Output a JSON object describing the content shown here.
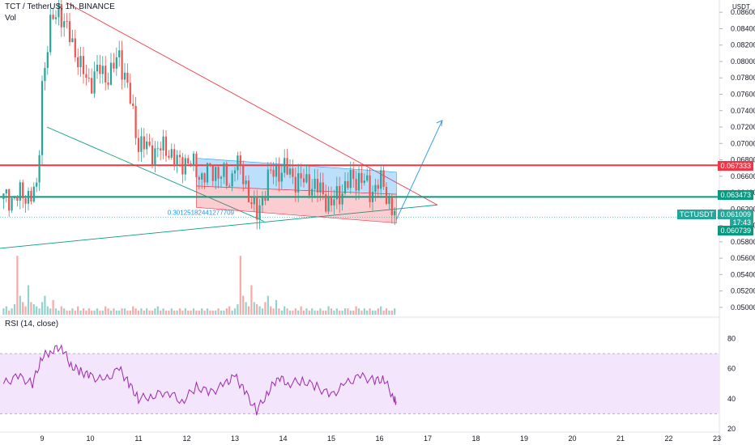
{
  "header": {
    "symbol_line": "TCT / TetherUS, 1h, BINANCE",
    "volume_label": "Vol",
    "rsi_label": "RSI (14, close)",
    "currency": "USDT"
  },
  "price_axis": {
    "ticks": [
      "0.086000",
      "0.084000",
      "0.082000",
      "0.080000",
      "0.078000",
      "0.076000",
      "0.074000",
      "0.072000",
      "0.070000",
      "0.068000",
      "0.066000",
      "0.064000",
      "0.062000",
      "0.060000",
      "0.058000",
      "0.056000",
      "0.054000",
      "0.052000",
      "0.050000"
    ]
  },
  "price_tags": {
    "resistance": {
      "label": "0.067333",
      "value": 0.067333,
      "color": "#f23645"
    },
    "support": {
      "label": "0.063473",
      "value": 0.063473,
      "color": "#089981"
    },
    "symbol": {
      "label": "TCTUSDT",
      "color": "#26a69a"
    },
    "last": {
      "label": "0.061009",
      "value": 0.061009,
      "color": "#26a69a"
    },
    "countdown": {
      "label": "17:43"
    },
    "low": {
      "label": "0.060739",
      "value": 0.060739,
      "color": "#089981"
    }
  },
  "annotation": {
    "label": "0.30125182441277709"
  },
  "rsi_axis": {
    "ticks": [
      "80",
      "60",
      "40",
      "20"
    ]
  },
  "time_axis": {
    "ticks": [
      "9",
      "10",
      "11",
      "12",
      "13",
      "14",
      "15",
      "16",
      "17",
      "18",
      "19",
      "20",
      "21",
      "22",
      "23"
    ]
  },
  "colors": {
    "up": "#26a69a",
    "down": "#ef5350",
    "rsi": "#9c27b0",
    "rsi_band": "#f3e5fb"
  },
  "chart_data": {
    "type": "candlestick",
    "ylim": [
      0.049,
      0.0875
    ],
    "rsi_ylim": [
      20,
      90
    ],
    "rsi_overbought": 70,
    "rsi_oversold": 30,
    "price_path": [
      [
        8.2,
        0.0632
      ],
      [
        8.5,
        0.0635
      ],
      [
        8.9,
        0.064
      ],
      [
        9.0,
        0.0775
      ],
      [
        9.2,
        0.085
      ],
      [
        9.35,
        0.0868
      ],
      [
        9.45,
        0.0842
      ],
      [
        9.6,
        0.083
      ],
      [
        9.8,
        0.079
      ],
      [
        10.0,
        0.0775
      ],
      [
        10.2,
        0.079
      ],
      [
        10.4,
        0.078
      ],
      [
        10.6,
        0.081
      ],
      [
        10.8,
        0.076
      ],
      [
        11.0,
        0.07
      ],
      [
        11.3,
        0.069
      ],
      [
        11.6,
        0.0695
      ],
      [
        11.8,
        0.0675
      ],
      [
        12.0,
        0.068
      ],
      [
        12.3,
        0.066
      ],
      [
        12.6,
        0.0668
      ],
      [
        12.9,
        0.065
      ],
      [
        13.0,
        0.068
      ],
      [
        13.2,
        0.0655
      ],
      [
        13.45,
        0.061
      ],
      [
        13.7,
        0.066
      ],
      [
        14.0,
        0.067
      ],
      [
        14.3,
        0.0655
      ],
      [
        14.6,
        0.065
      ],
      [
        14.8,
        0.064
      ],
      [
        15.0,
        0.0625
      ],
      [
        15.3,
        0.065
      ],
      [
        15.6,
        0.066
      ],
      [
        15.8,
        0.064
      ],
      [
        16.0,
        0.0655
      ],
      [
        16.2,
        0.063
      ],
      [
        16.35,
        0.061
      ]
    ],
    "rsi_path": [
      [
        8.2,
        50
      ],
      [
        8.5,
        55
      ],
      [
        8.8,
        50
      ],
      [
        9.0,
        68
      ],
      [
        9.2,
        72
      ],
      [
        9.4,
        75
      ],
      [
        9.6,
        62
      ],
      [
        9.8,
        58
      ],
      [
        10.0,
        55
      ],
      [
        10.3,
        52
      ],
      [
        10.6,
        60
      ],
      [
        10.8,
        50
      ],
      [
        11.0,
        40
      ],
      [
        11.3,
        42
      ],
      [
        11.6,
        45
      ],
      [
        11.9,
        38
      ],
      [
        12.2,
        48
      ],
      [
        12.5,
        44
      ],
      [
        12.8,
        50
      ],
      [
        13.0,
        55
      ],
      [
        13.2,
        45
      ],
      [
        13.45,
        32
      ],
      [
        13.7,
        45
      ],
      [
        13.9,
        55
      ],
      [
        14.1,
        50
      ],
      [
        14.4,
        52
      ],
      [
        14.7,
        48
      ],
      [
        15.0,
        42
      ],
      [
        15.3,
        50
      ],
      [
        15.6,
        55
      ],
      [
        15.9,
        52
      ],
      [
        16.1,
        53
      ],
      [
        16.3,
        40
      ],
      [
        16.35,
        38
      ]
    ],
    "volume": [
      3,
      4,
      2,
      3,
      5,
      28,
      9,
      6,
      4,
      14,
      6,
      5,
      4,
      3,
      6,
      9,
      4,
      3,
      7,
      3,
      2,
      4,
      3,
      2,
      2,
      3,
      2,
      4,
      2,
      3,
      2,
      3,
      2,
      2,
      3,
      2,
      2,
      4,
      3,
      2,
      3,
      2,
      2,
      3,
      3,
      2,
      2,
      4,
      3,
      2,
      3,
      2,
      3,
      2,
      2,
      3,
      4,
      2,
      3,
      2,
      2,
      3,
      2,
      2,
      3,
      2,
      3,
      2,
      2,
      3,
      2,
      2,
      3,
      2,
      3,
      2,
      2,
      2,
      3,
      2,
      2
    ],
    "levels": {
      "resistance": 0.067333,
      "support": 0.063473
    }
  }
}
